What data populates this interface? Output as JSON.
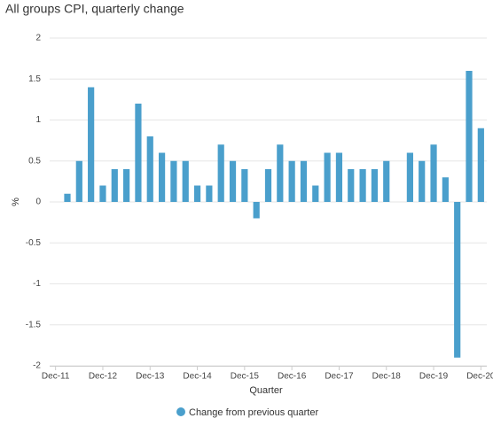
{
  "chart_data": {
    "type": "bar",
    "title": "All groups CPI, quarterly change",
    "x_label": "Quarter",
    "y_label": "%",
    "categories": [
      "Dec-11",
      null,
      null,
      null,
      "Dec-12",
      null,
      null,
      null,
      "Dec-13",
      null,
      null,
      null,
      "Dec-14",
      null,
      null,
      null,
      "Dec-15",
      null,
      null,
      null,
      "Dec-16",
      null,
      null,
      null,
      "Dec-17",
      null,
      null,
      null,
      "Dec-18",
      null,
      null,
      null,
      "Dec-19",
      null,
      null,
      null,
      "Dec-20"
    ],
    "series": [
      {
        "name": "Change from previous quarter",
        "color": "#4a9fcc",
        "values": [
          0,
          0.1,
          0.5,
          1.4,
          0.2,
          0.4,
          0.4,
          1.2,
          0.8,
          0.6,
          0.5,
          0.5,
          0.2,
          0.2,
          0.7,
          0.5,
          0.4,
          -0.2,
          0.4,
          0.7,
          0.5,
          0.5,
          0.2,
          0.6,
          0.6,
          0.4,
          0.4,
          0.4,
          0.5,
          0,
          0.6,
          0.5,
          0.7,
          0.3,
          -1.9,
          1.6,
          0.9
        ]
      }
    ],
    "ylim": [
      -2,
      2
    ],
    "yticks": [
      -2,
      -1.5,
      -1,
      -0.5,
      0,
      0.5,
      1,
      1.5,
      2
    ],
    "grid": true,
    "legend": "bottom"
  }
}
